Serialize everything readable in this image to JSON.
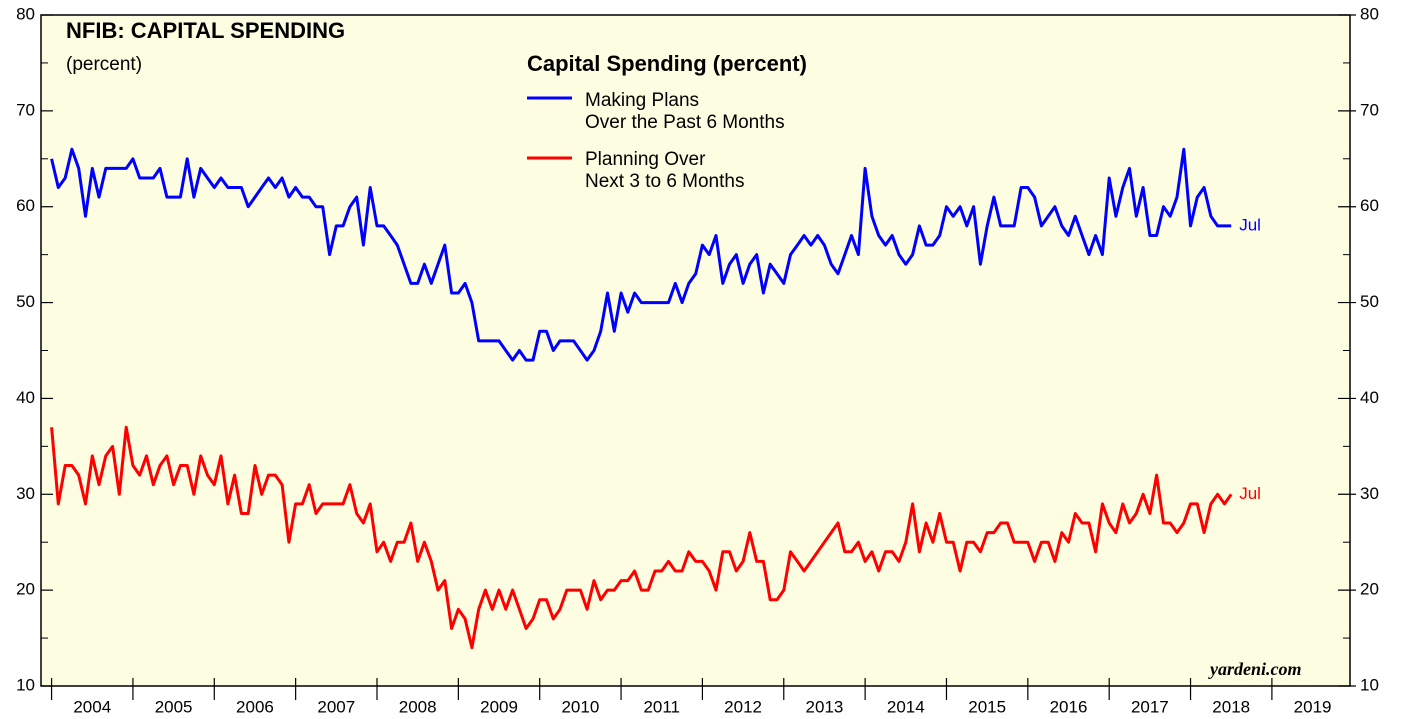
{
  "chart_data": {
    "type": "line",
    "title": "NFIB: CAPITAL SPENDING",
    "subtitle": "(percent)",
    "legend_title": "Capital Spending (percent)",
    "watermark": "yardeni.com",
    "x": [
      2004,
      2004.083,
      2004.167,
      2004.25,
      2004.333,
      2004.417,
      2004.5,
      2004.583,
      2004.667,
      2004.75,
      2004.833,
      2004.917,
      2005,
      2005.083,
      2005.167,
      2005.25,
      2005.333,
      2005.417,
      2005.5,
      2005.583,
      2005.667,
      2005.75,
      2005.833,
      2005.917,
      2006,
      2006.083,
      2006.167,
      2006.25,
      2006.333,
      2006.417,
      2006.5,
      2006.583,
      2006.667,
      2006.75,
      2006.833,
      2006.917,
      2007,
      2007.083,
      2007.167,
      2007.25,
      2007.333,
      2007.417,
      2007.5,
      2007.583,
      2007.667,
      2007.75,
      2007.833,
      2007.917,
      2008,
      2008.083,
      2008.167,
      2008.25,
      2008.333,
      2008.417,
      2008.5,
      2008.583,
      2008.667,
      2008.75,
      2008.833,
      2008.917,
      2009,
      2009.083,
      2009.167,
      2009.25,
      2009.333,
      2009.417,
      2009.5,
      2009.583,
      2009.667,
      2009.75,
      2009.833,
      2009.917,
      2010,
      2010.083,
      2010.167,
      2010.25,
      2010.333,
      2010.417,
      2010.5,
      2010.583,
      2010.667,
      2010.75,
      2010.833,
      2010.917,
      2011,
      2011.083,
      2011.167,
      2011.25,
      2011.333,
      2011.417,
      2011.5,
      2011.583,
      2011.667,
      2011.75,
      2011.833,
      2011.917,
      2012,
      2012.083,
      2012.167,
      2012.25,
      2012.333,
      2012.417,
      2012.5,
      2012.583,
      2012.667,
      2012.75,
      2012.833,
      2012.917,
      2013,
      2013.083,
      2013.167,
      2013.25,
      2013.333,
      2013.417,
      2013.5,
      2013.583,
      2013.667,
      2013.75,
      2013.833,
      2013.917,
      2014,
      2014.083,
      2014.167,
      2014.25,
      2014.333,
      2014.417,
      2014.5,
      2014.583,
      2014.667,
      2014.75,
      2014.833,
      2014.917,
      2015,
      2015.083,
      2015.167,
      2015.25,
      2015.333,
      2015.417,
      2015.5,
      2015.583,
      2015.667,
      2015.75,
      2015.833,
      2015.917,
      2016,
      2016.083,
      2016.167,
      2016.25,
      2016.333,
      2016.417,
      2016.5,
      2016.583,
      2016.667,
      2016.75,
      2016.833,
      2016.917,
      2017,
      2017.083,
      2017.167,
      2017.25,
      2017.333,
      2017.417,
      2017.5,
      2017.583,
      2017.667,
      2017.75,
      2017.833,
      2017.917,
      2018,
      2018.083,
      2018.167,
      2018.25,
      2018.333,
      2018.417,
      2018.5
    ],
    "series": [
      {
        "name": "Making Plans\nOver the Past 6 Months",
        "color": "#0000ff",
        "end_label": "Jul",
        "values": [
          65,
          62,
          63,
          66,
          64,
          59,
          64,
          61,
          64,
          64,
          64,
          64,
          65,
          63,
          63,
          63,
          64,
          61,
          61,
          61,
          65,
          61,
          64,
          63,
          62,
          63,
          62,
          62,
          62,
          60,
          61,
          62,
          63,
          62,
          63,
          61,
          62,
          61,
          61,
          60,
          60,
          55,
          58,
          58,
          60,
          61,
          56,
          62,
          58,
          58,
          57,
          56,
          54,
          52,
          52,
          54,
          52,
          54,
          56,
          51,
          51,
          52,
          50,
          46,
          46,
          46,
          46,
          45,
          44,
          45,
          44,
          44,
          47,
          47,
          45,
          46,
          46,
          46,
          45,
          44,
          45,
          47,
          51,
          47,
          51,
          49,
          51,
          50,
          50,
          50,
          50,
          50,
          52,
          50,
          52,
          53,
          56,
          55,
          57,
          52,
          54,
          55,
          52,
          54,
          55,
          51,
          54,
          53,
          52,
          55,
          56,
          57,
          56,
          57,
          56,
          54,
          53,
          55,
          57,
          55,
          64,
          59,
          57,
          56,
          57,
          55,
          54,
          55,
          58,
          56,
          56,
          57,
          60,
          59,
          60,
          58,
          60,
          54,
          58,
          61,
          58,
          58,
          58,
          62,
          62,
          61,
          58,
          59,
          60,
          58,
          57,
          59,
          57,
          55,
          57,
          55,
          63,
          59,
          62,
          64,
          59,
          62,
          57,
          57,
          60,
          59,
          61,
          66,
          58,
          61,
          62,
          59,
          58,
          58,
          58
        ]
      },
      {
        "name": "Planning Over\nNext 3 to 6 Months",
        "color": "#ff0000",
        "end_label": "Jul",
        "values": [
          37,
          29,
          33,
          33,
          32,
          29,
          34,
          31,
          34,
          35,
          30,
          37,
          33,
          32,
          34,
          31,
          33,
          34,
          31,
          33,
          33,
          30,
          34,
          32,
          31,
          34,
          29,
          32,
          28,
          28,
          33,
          30,
          32,
          32,
          31,
          25,
          29,
          29,
          31,
          28,
          29,
          29,
          29,
          29,
          31,
          28,
          27,
          29,
          24,
          25,
          23,
          25,
          25,
          27,
          23,
          25,
          23,
          20,
          21,
          16,
          18,
          17,
          14,
          18,
          20,
          18,
          20,
          18,
          20,
          18,
          16,
          17,
          19,
          19,
          17,
          18,
          20,
          20,
          20,
          18,
          21,
          19,
          20,
          20,
          21,
          21,
          22,
          20,
          20,
          22,
          22,
          23,
          22,
          22,
          24,
          23,
          23,
          22,
          20,
          24,
          24,
          22,
          23,
          26,
          23,
          23,
          19,
          19,
          20,
          24,
          23,
          22,
          23,
          24,
          25,
          26,
          27,
          24,
          24,
          25,
          23,
          24,
          22,
          24,
          24,
          23,
          25,
          29,
          24,
          27,
          25,
          28,
          25,
          25,
          22,
          25,
          25,
          24,
          26,
          26,
          27,
          27,
          25,
          25,
          25,
          23,
          25,
          25,
          23,
          26,
          25,
          28,
          27,
          27,
          24,
          29,
          27,
          26,
          29,
          27,
          28,
          30,
          28,
          32,
          27,
          27,
          26,
          27,
          29,
          29,
          26,
          29,
          30,
          29,
          30
        ]
      }
    ],
    "xlim": [
      2003.87,
      2019.96
    ],
    "xticks": [
      {
        "value": 2004.5,
        "label": "2004"
      },
      {
        "value": 2005.5,
        "label": "2005"
      },
      {
        "value": 2006.5,
        "label": "2006"
      },
      {
        "value": 2007.5,
        "label": "2007"
      },
      {
        "value": 2008.5,
        "label": "2008"
      },
      {
        "value": 2009.5,
        "label": "2009"
      },
      {
        "value": 2010.5,
        "label": "2010"
      },
      {
        "value": 2011.5,
        "label": "2011"
      },
      {
        "value": 2012.5,
        "label": "2012"
      },
      {
        "value": 2013.5,
        "label": "2013"
      },
      {
        "value": 2014.5,
        "label": "2014"
      },
      {
        "value": 2015.5,
        "label": "2015"
      },
      {
        "value": 2016.5,
        "label": "2016"
      },
      {
        "value": 2017.5,
        "label": "2017"
      },
      {
        "value": 2018.5,
        "label": "2018"
      },
      {
        "value": 2019.5,
        "label": "2019"
      }
    ],
    "ylim": [
      10,
      80
    ],
    "yticks": [
      10,
      20,
      30,
      40,
      50,
      60,
      70,
      80
    ],
    "background": "#fdfde1"
  }
}
